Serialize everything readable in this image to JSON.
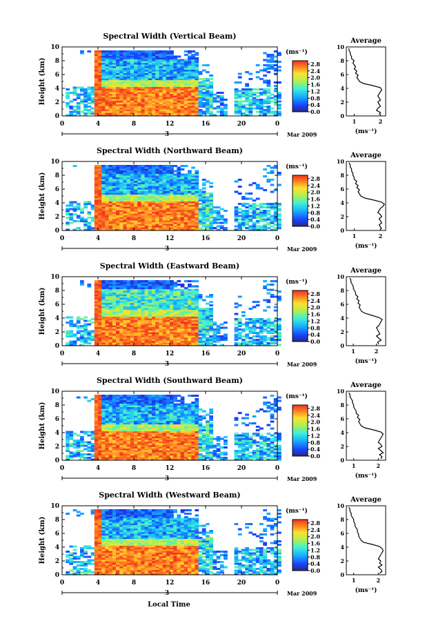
{
  "figure": {
    "ylabel": "Height (km)",
    "xlabel": "Local Time",
    "units": "(ms⁻¹)",
    "average_title": "Average",
    "average_xlabel": "(ms⁻¹)",
    "date_label": "Mar 2009",
    "day_label": "3"
  },
  "chart_data": [
    {
      "type": "heatmap",
      "title": "Spectral Width (Vertical Beam)",
      "x_ticks": [
        "0",
        "4",
        "8",
        "12",
        "16",
        "20",
        "0"
      ],
      "y_ticks": [
        "0",
        "2",
        "4",
        "6",
        "8",
        "10"
      ],
      "xlim": [
        0,
        24
      ],
      "ylim": [
        0,
        10
      ],
      "colorbar_ticks": [
        "0.0",
        "0.4",
        "0.8",
        "1.2",
        "1.6",
        "2.0",
        "2.4",
        "2.8"
      ],
      "colorbar_range": [
        0,
        3.0
      ],
      "average": {
        "x_ticks": [
          "1",
          "2"
        ],
        "xlim": [
          0.7,
          2.2
        ],
        "y_ticks": [
          "0",
          "2",
          "4",
          "6",
          "8",
          "10"
        ],
        "height": [
          0.2,
          0.5,
          0.8,
          1.1,
          1.4,
          1.7,
          2.0,
          2.3,
          2.6,
          2.9,
          3.2,
          3.5,
          3.8,
          4.1,
          4.4,
          4.7,
          5.0,
          5.3,
          5.6,
          5.9,
          6.2,
          6.5,
          6.8,
          7.1,
          7.4,
          7.7,
          8.0,
          8.3,
          8.6,
          8.9,
          9.2,
          9.5,
          9.8
        ],
        "width": [
          1.95,
          2.0,
          1.85,
          1.9,
          2.0,
          1.95,
          1.9,
          2.0,
          1.95,
          1.9,
          1.95,
          2.0,
          2.05,
          2.0,
          1.7,
          1.35,
          1.2,
          1.15,
          1.1,
          1.15,
          1.05,
          1.1,
          1.0,
          1.05,
          1.0,
          0.95,
          1.0,
          0.9,
          0.9,
          0.85,
          0.85,
          0.8,
          0.8
        ]
      }
    },
    {
      "type": "heatmap",
      "title": "Spectral Width (Northward Beam)",
      "x_ticks": [
        "0",
        "4",
        "8",
        "12",
        "16",
        "20",
        "0"
      ],
      "y_ticks": [
        "0",
        "2",
        "4",
        "6",
        "8",
        "10"
      ],
      "xlim": [
        0,
        24
      ],
      "ylim": [
        0,
        10
      ],
      "colorbar_ticks": [
        "0.0",
        "0.4",
        "0.8",
        "1.2",
        "1.6",
        "2.0",
        "2.4",
        "2.8"
      ],
      "colorbar_range": [
        0,
        3.0
      ],
      "average": {
        "x_ticks": [
          "1",
          "2"
        ],
        "xlim": [
          0.7,
          2.2
        ],
        "y_ticks": [
          "0",
          "2",
          "4",
          "6",
          "8",
          "10"
        ],
        "height": [
          0.2,
          0.5,
          0.8,
          1.1,
          1.4,
          1.7,
          2.0,
          2.3,
          2.6,
          2.9,
          3.2,
          3.5,
          3.8,
          4.1,
          4.4,
          4.7,
          5.0,
          5.3,
          5.6,
          5.9,
          6.2,
          6.5,
          6.8,
          7.1,
          7.4,
          7.7,
          8.0,
          8.3,
          8.6,
          8.9,
          9.2,
          9.5,
          9.8
        ],
        "width": [
          2.05,
          2.0,
          1.95,
          2.05,
          2.0,
          1.95,
          2.05,
          2.0,
          1.9,
          1.95,
          2.0,
          2.1,
          2.15,
          2.05,
          1.75,
          1.4,
          1.25,
          1.2,
          1.15,
          1.2,
          1.1,
          1.15,
          1.05,
          1.1,
          1.0,
          1.0,
          0.95,
          0.95,
          0.9,
          0.9,
          0.85,
          0.85,
          0.8
        ]
      }
    },
    {
      "type": "heatmap",
      "title": "Spectral Width (Eastward Beam)",
      "x_ticks": [
        "0",
        "4",
        "8",
        "12",
        "16",
        "20",
        "0"
      ],
      "y_ticks": [
        "0",
        "2",
        "4",
        "6",
        "8",
        "10"
      ],
      "xlim": [
        0,
        24
      ],
      "ylim": [
        0,
        10
      ],
      "colorbar_ticks": [
        "0.0",
        "0.4",
        "0.8",
        "1.2",
        "1.6",
        "2.0",
        "2.4",
        "2.8"
      ],
      "colorbar_range": [
        0,
        3.0
      ],
      "average": {
        "x_ticks": [
          "1",
          "2"
        ],
        "xlim": [
          0.7,
          2.4
        ],
        "y_ticks": [
          "0",
          "2",
          "4",
          "6",
          "8",
          "10"
        ],
        "height": [
          0.2,
          0.5,
          0.8,
          1.1,
          1.4,
          1.7,
          2.0,
          2.3,
          2.6,
          2.9,
          3.2,
          3.5,
          3.8,
          4.1,
          4.4,
          4.7,
          5.0,
          5.3,
          5.6,
          5.9,
          6.2,
          6.5,
          6.8,
          7.1,
          7.4,
          7.7,
          8.0,
          8.3,
          8.6,
          8.9,
          9.2,
          9.5,
          9.8
        ],
        "width": [
          2.1,
          2.05,
          2.2,
          2.1,
          2.0,
          2.15,
          2.1,
          2.05,
          2.0,
          2.1,
          2.15,
          2.2,
          2.25,
          2.1,
          1.8,
          1.5,
          1.35,
          1.3,
          1.25,
          1.3,
          1.2,
          1.25,
          1.15,
          1.2,
          1.1,
          1.1,
          1.05,
          1.0,
          1.0,
          0.95,
          0.9,
          0.9,
          0.85
        ]
      }
    },
    {
      "type": "heatmap",
      "title": "Spectral Width (Southward Beam)",
      "x_ticks": [
        "0",
        "4",
        "8",
        "12",
        "16",
        "20",
        "0"
      ],
      "y_ticks": [
        "0",
        "2",
        "4",
        "6",
        "8",
        "10"
      ],
      "xlim": [
        0,
        24
      ],
      "ylim": [
        0,
        10
      ],
      "colorbar_ticks": [
        "0.0",
        "0.4",
        "0.8",
        "1.2",
        "1.6",
        "2.0",
        "2.4",
        "2.8"
      ],
      "colorbar_range": [
        0,
        3.0
      ],
      "average": {
        "x_ticks": [
          "1",
          "2"
        ],
        "xlim": [
          0.7,
          2.3
        ],
        "y_ticks": [
          "0",
          "2",
          "4",
          "6",
          "8",
          "10"
        ],
        "height": [
          0.2,
          0.5,
          0.8,
          1.1,
          1.4,
          1.7,
          2.0,
          2.3,
          2.6,
          2.9,
          3.2,
          3.5,
          3.8,
          4.1,
          4.4,
          4.7,
          5.0,
          5.3,
          5.6,
          5.9,
          6.2,
          6.5,
          6.8,
          7.1,
          7.4,
          7.7,
          8.0,
          8.3,
          8.6,
          8.9,
          9.2,
          9.5,
          9.8
        ],
        "width": [
          2.1,
          2.15,
          2.05,
          2.2,
          2.1,
          2.0,
          2.15,
          2.1,
          2.0,
          2.05,
          2.1,
          2.15,
          2.2,
          2.1,
          1.8,
          1.45,
          1.3,
          1.25,
          1.2,
          1.25,
          1.15,
          1.2,
          1.1,
          1.1,
          1.05,
          1.0,
          1.0,
          0.95,
          0.95,
          0.9,
          0.85,
          0.85,
          0.8
        ]
      }
    },
    {
      "type": "heatmap",
      "title": "Spectral Width (Westward Beam)",
      "x_ticks": [
        "0",
        "4",
        "8",
        "12",
        "16",
        "20",
        "0"
      ],
      "y_ticks": [
        "0",
        "2",
        "4",
        "6",
        "8",
        "10"
      ],
      "xlim": [
        0,
        24
      ],
      "ylim": [
        0,
        10
      ],
      "colorbar_ticks": [
        "0.0",
        "0.4",
        "0.8",
        "1.2",
        "1.6",
        "2.0",
        "2.4",
        "2.8"
      ],
      "colorbar_range": [
        0,
        3.0
      ],
      "average": {
        "x_ticks": [
          "1",
          "2"
        ],
        "xlim": [
          0.7,
          2.3
        ],
        "y_ticks": [
          "0",
          "2",
          "4",
          "6",
          "8",
          "10"
        ],
        "height": [
          0.2,
          0.5,
          0.8,
          1.1,
          1.4,
          1.7,
          2.0,
          2.3,
          2.6,
          2.9,
          3.2,
          3.5,
          3.8,
          4.1,
          4.4,
          4.7,
          5.0,
          5.3,
          5.6,
          5.9,
          6.2,
          6.5,
          6.8,
          7.1,
          7.4,
          7.7,
          8.0,
          8.3,
          8.6,
          8.9,
          9.2,
          9.5,
          9.8
        ],
        "width": [
          2.05,
          2.15,
          2.1,
          2.0,
          2.15,
          2.05,
          2.1,
          2.0,
          2.05,
          2.1,
          2.15,
          2.2,
          2.15,
          2.05,
          1.75,
          1.4,
          1.3,
          1.25,
          1.2,
          1.2,
          1.15,
          1.15,
          1.1,
          1.05,
          1.05,
          1.0,
          1.0,
          0.95,
          0.9,
          0.9,
          0.85,
          0.85,
          0.8
        ]
      }
    }
  ]
}
